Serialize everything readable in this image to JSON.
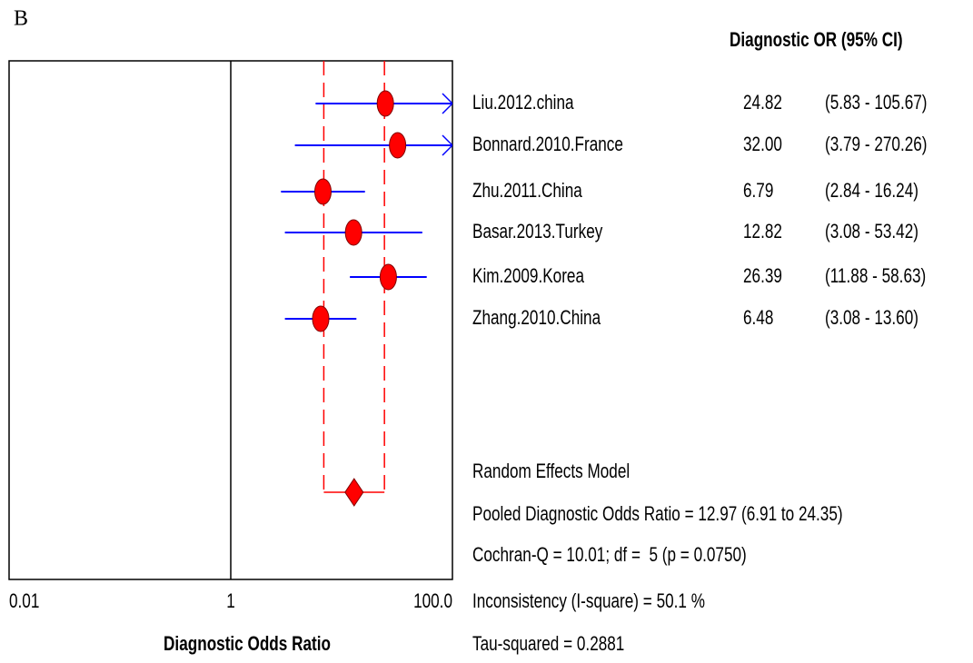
{
  "chart_data": {
    "type": "forest",
    "panel_label": "B",
    "column_header": "Diagnostic OR (95% CI)",
    "x_label": "Diagnostic Odds Ratio",
    "xlim": [
      0.01,
      100
    ],
    "xscale": "log",
    "xticks": [
      0.01,
      1,
      {
        "value": 100,
        "label": "100.0"
      }
    ],
    "null_line": 1,
    "color": "#ff0000",
    "ci_color": "#0000ff",
    "categories": [
      "Liu.2012.china",
      "Bonnard.2010.France",
      "Zhu.2011.China",
      "Basar.2013.Turkey",
      "Kim.2009.Korea",
      "Zhang.2010.China"
    ],
    "values": [
      24.82,
      32.0,
      6.79,
      12.82,
      26.39,
      6.48
    ],
    "value_labels": [
      "24.82",
      "32.00",
      "6.79",
      "12.82",
      "26.39",
      "6.48"
    ],
    "lower": [
      5.83,
      3.79,
      2.84,
      3.08,
      11.88,
      3.08
    ],
    "upper": [
      105.67,
      270.26,
      16.24,
      53.42,
      58.63,
      13.6
    ],
    "ci_labels": [
      "(5.83 - 105.67)",
      "(3.79 - 270.26)",
      "(2.84 - 16.24)",
      "(3.08 - 53.42)",
      "(11.88 - 58.63)",
      "(3.08 - 13.60)"
    ],
    "pooled": {
      "value": 12.97,
      "lower": 6.91,
      "upper": 24.35
    },
    "annotations": [
      "Random Effects Model",
      "Pooled Diagnostic Odds Ratio = 12.97 (6.91 to 24.35)",
      "Cochran-Q = 10.01; df =  5 (p = 0.0750)",
      "Inconsistency (I-square) = 50.1 %",
      "Tau-squared = 0.2881"
    ]
  }
}
